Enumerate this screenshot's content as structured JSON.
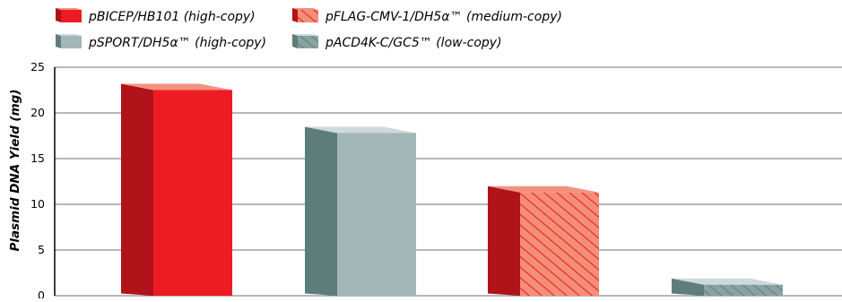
{
  "chart_data": {
    "type": "bar",
    "title": "",
    "xlabel": "",
    "ylabel": "Plasmid DNA Yield (mg)",
    "ylim": [
      0,
      25
    ],
    "yticks": [
      0,
      5,
      10,
      15,
      20,
      25
    ],
    "grid": true,
    "legend_position": "top-left",
    "categories": [
      "pBICEP/HB101 (high-copy)",
      "pSPORT/DH5α™ (high-copy)",
      "pFLAG-CMV-1/DH5α™ (medium-copy)",
      "pACD4K-C/GC5™ (low-copy)"
    ],
    "series": [
      {
        "values": [
          22.5,
          17.8,
          11.3,
          1.2
        ]
      }
    ],
    "legend": [
      {
        "label": "pBICEP/HB101 (high-copy)",
        "style": "solid-red"
      },
      {
        "label": "pFLAG-CMV-1/DH5α™ (medium-copy)",
        "style": "hatched-salmon"
      },
      {
        "label": "pSPORT/DH5α™ (high-copy)",
        "style": "solid-gray"
      },
      {
        "label": "pACD4K-C/GC5™ (low-copy)",
        "style": "hatched-slate"
      }
    ],
    "colors": {
      "red_front": "#ED1C24",
      "red_side": "#B0131A",
      "red_top": "#F39180",
      "gray_front": "#A3B6B8",
      "gray_side": "#5D7D7B",
      "gray_top": "#CDD9DA",
      "salmon_front": "#F58E76",
      "salmon_hatch": "#E8212B",
      "slate_front": "#8AA3A2",
      "slate_hatch": "#5F7F7C",
      "grid": "#6f6f6f",
      "axis": "#000000"
    }
  }
}
